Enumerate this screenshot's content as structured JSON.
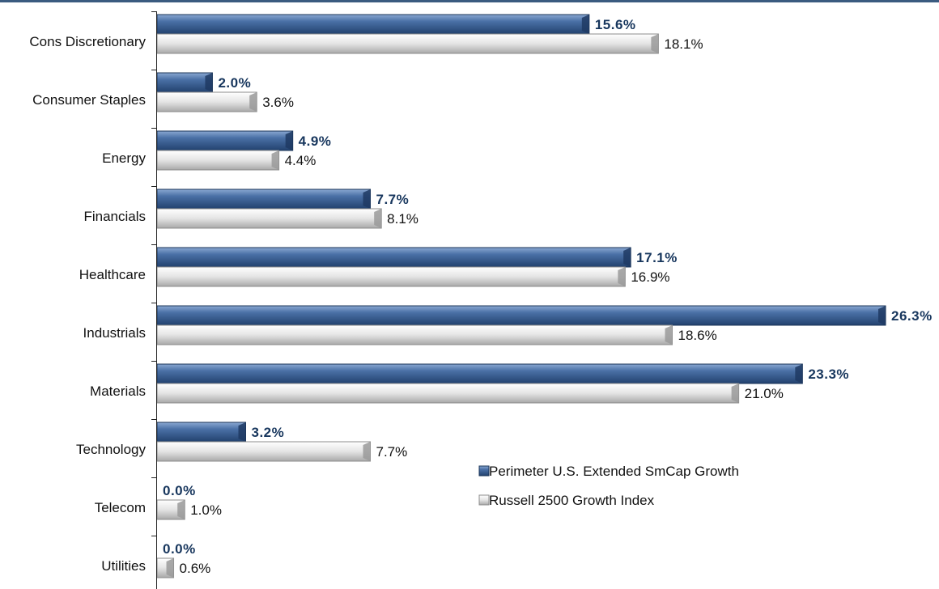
{
  "chart_data": {
    "type": "bar",
    "orientation": "horizontal",
    "categories": [
      "Cons Discretionary",
      "Consumer Staples",
      "Energy",
      "Financials",
      "Healthcare",
      "Industrials",
      "Materials",
      "Technology",
      "Telecom",
      "Utilities"
    ],
    "series": [
      {
        "name": "Perimeter U.S. Extended SmCap Growth",
        "values": [
          15.6,
          2.0,
          4.9,
          7.7,
          17.1,
          26.3,
          23.3,
          3.2,
          0.0,
          0.0
        ],
        "labels": [
          "15.6%",
          "2.0%",
          "4.9%",
          "7.7%",
          "17.1%",
          "26.3%",
          "23.3%",
          "3.2%",
          "0.0%",
          "0.0%"
        ],
        "color": "#3d6399"
      },
      {
        "name": "Russell 2500 Growth Index",
        "values": [
          18.1,
          3.6,
          4.4,
          8.1,
          16.9,
          18.6,
          21.0,
          7.7,
          1.0,
          0.6
        ],
        "labels": [
          "18.1%",
          "3.6%",
          "4.4%",
          "8.1%",
          "16.9%",
          "18.6%",
          "21.0%",
          "7.7%",
          "1.0%",
          "0.6%"
        ],
        "color": "#d9d9d9"
      }
    ],
    "xlim": [
      0,
      26.3
    ],
    "grid": false,
    "legend_position": "lower-right"
  }
}
